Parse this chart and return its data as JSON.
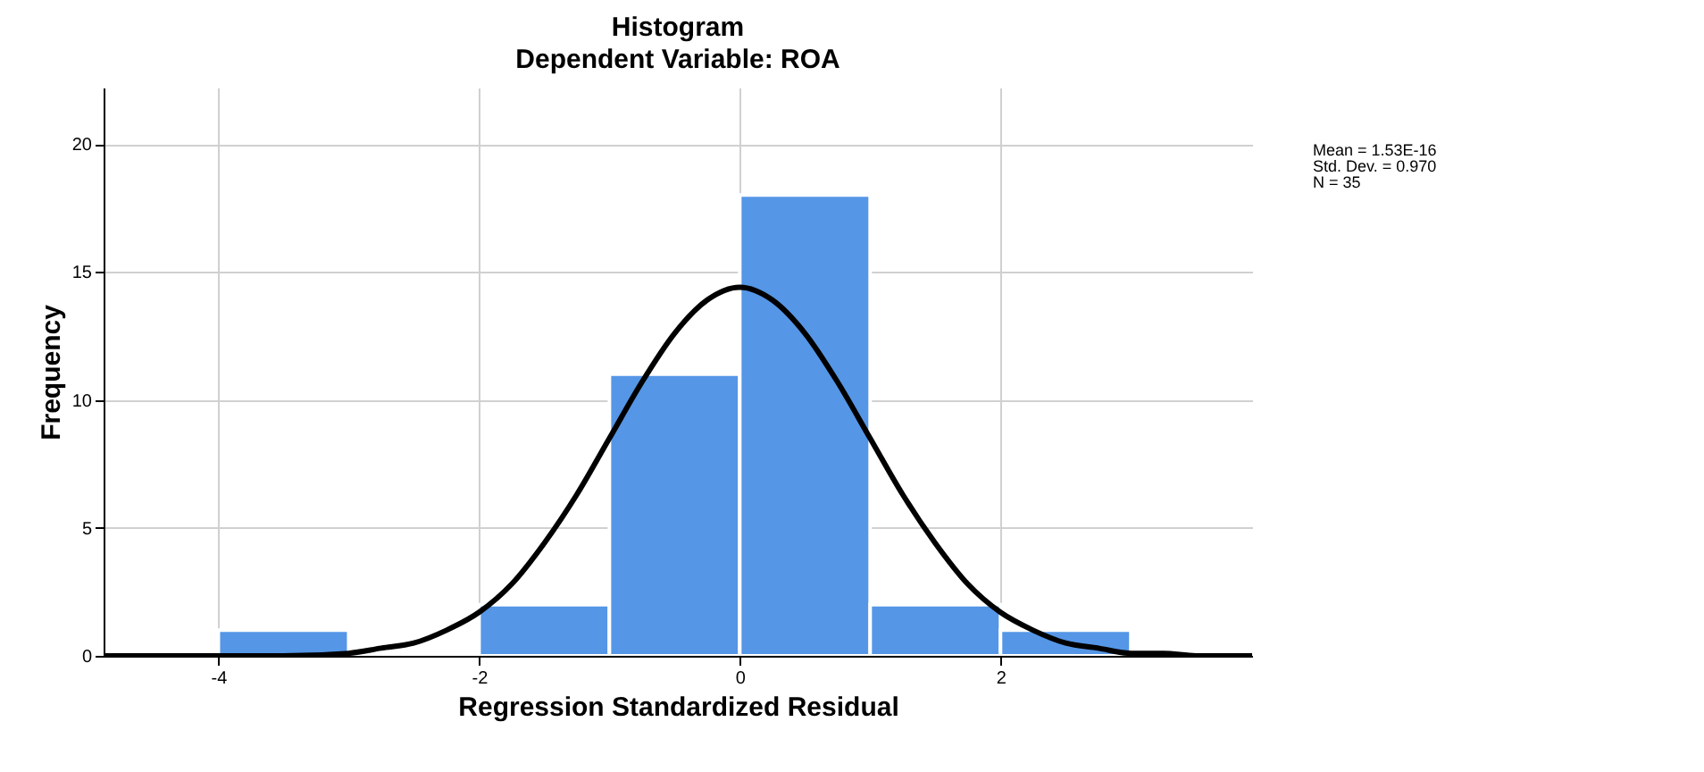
{
  "chart_data": {
    "type": "histogram",
    "title": "Histogram",
    "subtitle": "Dependent Variable: ROA",
    "xlabel": "Regression Standardized Residual",
    "ylabel": "Frequency",
    "bins": [
      -4,
      -3,
      -2,
      -1,
      0,
      1,
      2,
      3
    ],
    "values": [
      1,
      0,
      2,
      11,
      18,
      2,
      1
    ],
    "color": "#5596e6",
    "series": [
      {
        "type": "line",
        "color": "#000000",
        "x": [
          -4.88,
          -4.5,
          -4,
          -3.5,
          -3,
          -2.75,
          -2.5,
          -2.25,
          -2,
          -1.75,
          -1.5,
          -1.25,
          -1,
          -0.75,
          -0.5,
          -0.25,
          0,
          0.25,
          0.5,
          0.75,
          1,
          1.25,
          1.5,
          1.75,
          2,
          2.25,
          2.5,
          2.75,
          3,
          3.25,
          3.5,
          3.93
        ],
        "values": [
          0,
          0,
          0,
          0,
          0.1,
          0.3,
          0.5,
          1.0,
          1.7,
          2.8,
          4.4,
          6.3,
          8.5,
          10.7,
          12.6,
          13.9,
          14.4,
          13.9,
          12.6,
          10.7,
          8.5,
          6.3,
          4.4,
          2.8,
          1.7,
          1.0,
          0.5,
          0.3,
          0.1,
          0.1,
          0,
          0
        ]
      }
    ],
    "xlim": [
      -4.88,
      3.93
    ],
    "xticks": [
      -4,
      -2,
      0,
      2
    ],
    "ylim": [
      0,
      22.2
    ],
    "yticks": [
      0,
      5,
      10,
      15,
      20
    ],
    "grid": true,
    "annotations": [
      "Mean = 1.53E-16",
      "Std. Dev. = 0.970",
      "N = 35"
    ]
  }
}
